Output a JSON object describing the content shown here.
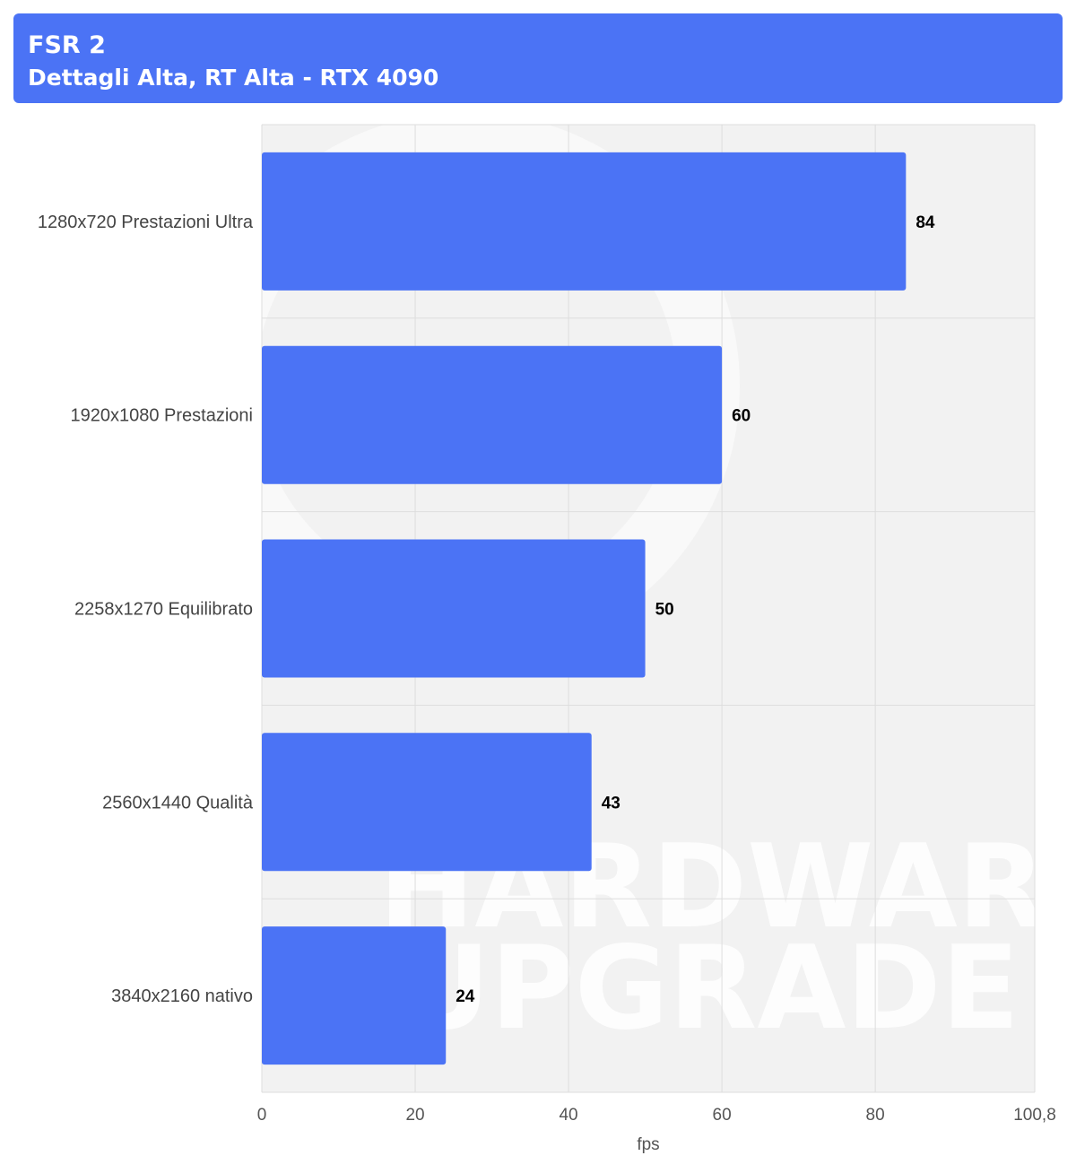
{
  "header": {
    "title": "FSR 2",
    "subtitle": "Dettagli Alta, RT Alta - RTX 4090"
  },
  "colors": {
    "accent": "#4b73f5",
    "plot_bg": "#f2f2f2",
    "grid": "#dddddd"
  },
  "watermark": {
    "line1": "HARDWARE",
    "line2": "UPGRADE"
  },
  "chart_data": {
    "type": "bar",
    "orientation": "horizontal",
    "categories": [
      "1280x720 Prestazioni Ultra",
      "1920x1080 Prestazioni",
      "2258x1270 Equilibrato",
      "2560x1440 Qualità",
      "3840x2160 nativo"
    ],
    "values": [
      84,
      60,
      50,
      43,
      24
    ],
    "value_labels": [
      "84",
      "60",
      "50",
      "43",
      "24"
    ],
    "title": "FSR 2",
    "subtitle": "Dettagli Alta, RT Alta - RTX 4090",
    "xlabel": "fps",
    "ylabel": "",
    "xlim": [
      0,
      100.8
    ],
    "ticks": [
      0,
      20,
      40,
      60,
      80,
      100.8
    ],
    "tick_labels": [
      "0",
      "20",
      "40",
      "60",
      "80",
      "100,8"
    ],
    "grid": true,
    "legend": "none"
  }
}
